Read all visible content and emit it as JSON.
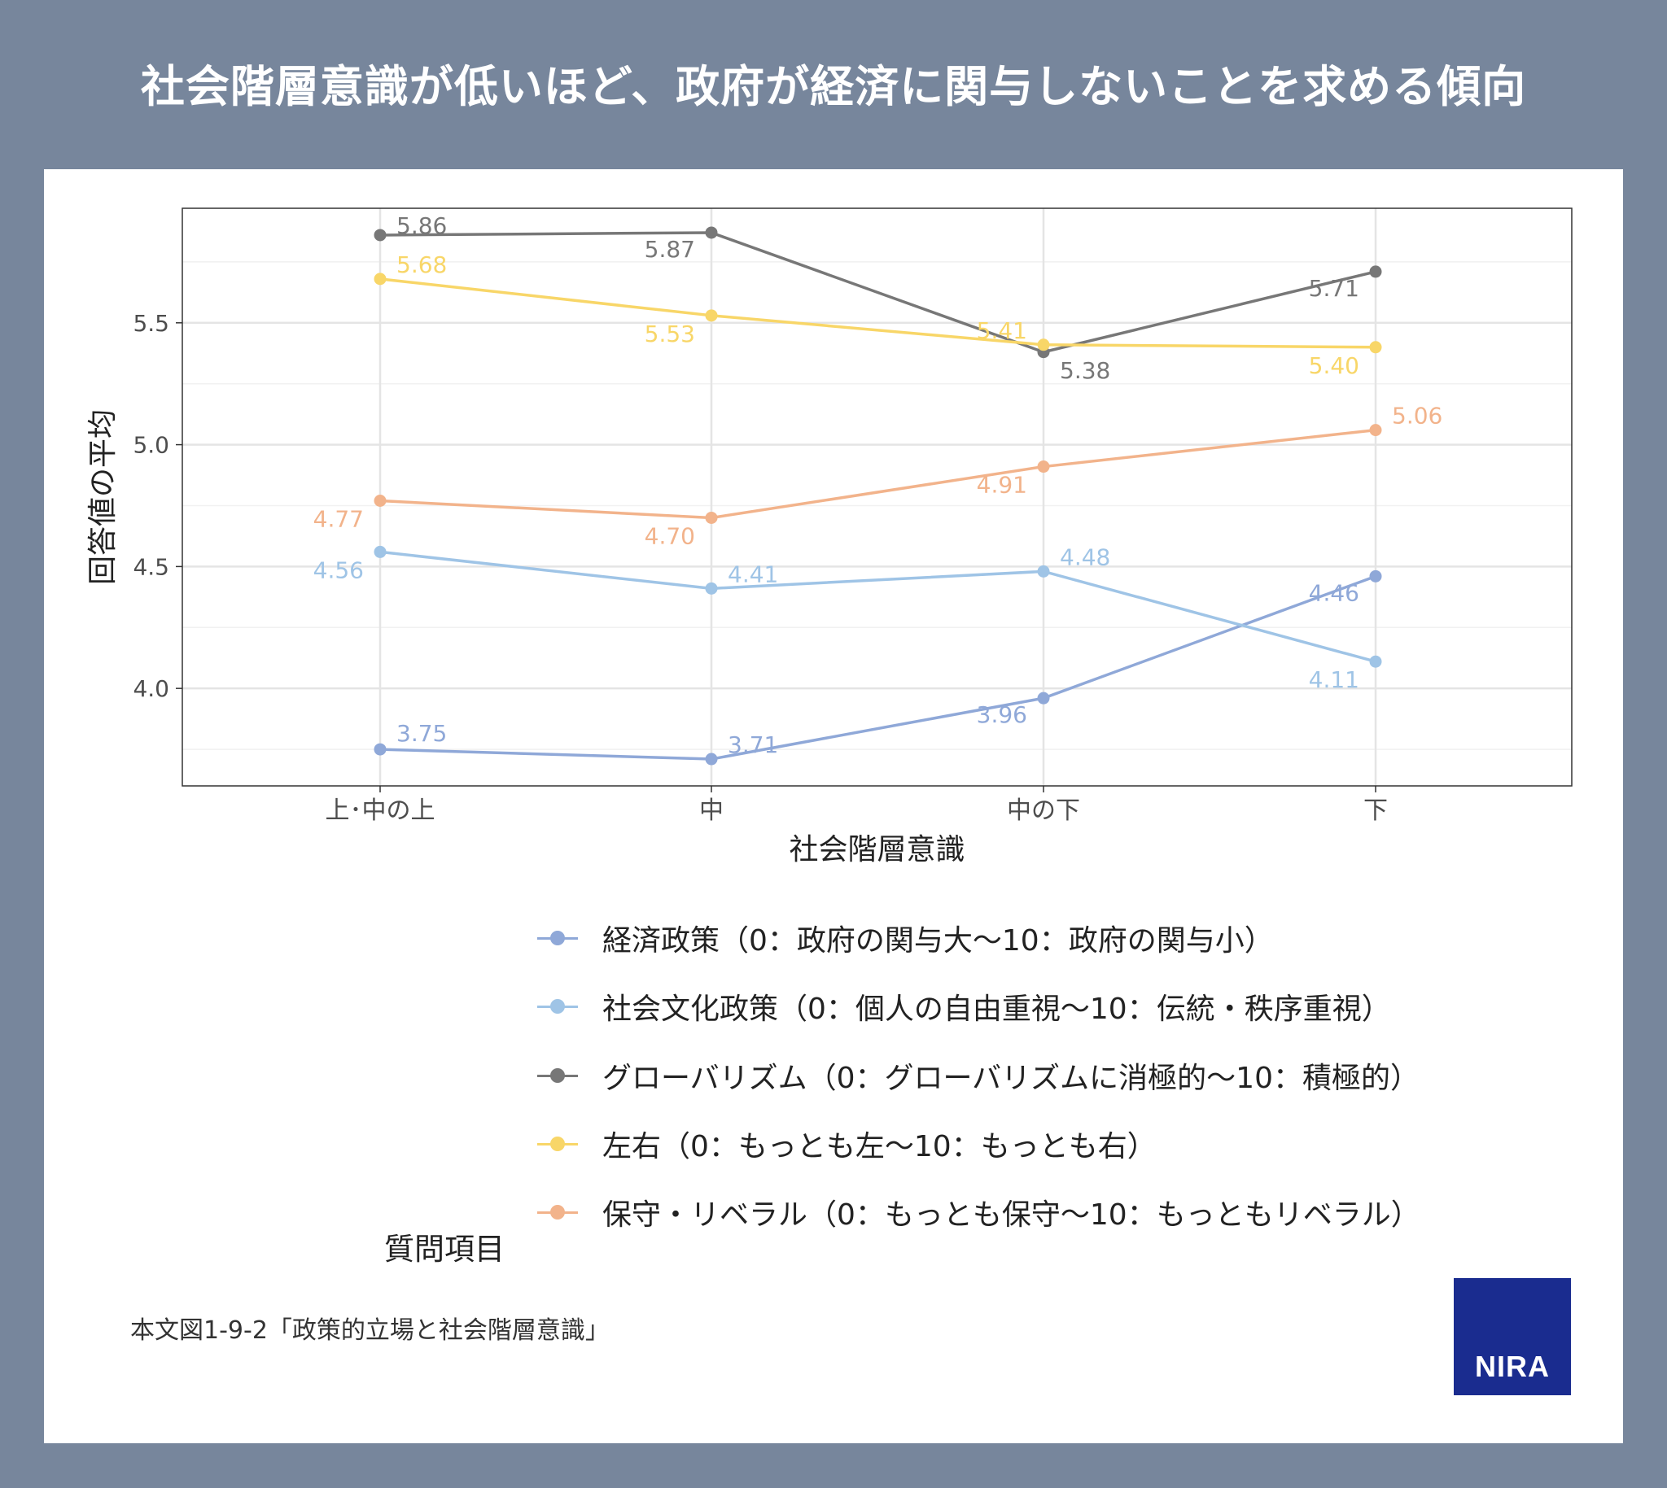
{
  "header": {
    "title": "社会階層意識が低いほど、政府が経済に関与しないことを求める傾向"
  },
  "chart_data": {
    "type": "line",
    "title": "",
    "xlabel": "社会階層意識",
    "ylabel": "回答値の平均",
    "categories": [
      "上･中の上",
      "中",
      "中の下",
      "下"
    ],
    "ylim": [
      3.6,
      5.97
    ],
    "yticks": [
      4.0,
      4.5,
      5.0,
      5.5
    ],
    "ytick_labels": [
      "4.0",
      "4.5",
      "5.0",
      "5.5"
    ],
    "grid": true,
    "legend_title": "質問項目",
    "legend_position": "bottom",
    "series": [
      {
        "name": "経済政策（0：政府の関与大〜10：政府の関与小）",
        "color": "#8fa8d8",
        "values": [
          3.75,
          3.71,
          3.96,
          4.46
        ],
        "labels": [
          "3.75",
          "3.71",
          "3.96",
          "4.46"
        ]
      },
      {
        "name": "社会文化政策（0：個人の自由重視〜10：伝統・秩序重視）",
        "color": "#9fc4e6",
        "values": [
          4.56,
          4.41,
          4.48,
          4.11
        ],
        "labels": [
          "4.56",
          "4.41",
          "4.48",
          "4.11"
        ]
      },
      {
        "name": "グローバリズム（0：グローバリズムに消極的〜10：積極的）",
        "color": "#777777",
        "values": [
          5.86,
          5.87,
          5.38,
          5.71
        ],
        "labels": [
          "5.86",
          "5.87",
          "5.38",
          "5.71"
        ]
      },
      {
        "name": "左右（0：もっとも左〜10：もっとも右）",
        "color": "#f8d668",
        "values": [
          5.68,
          5.53,
          5.41,
          5.4
        ],
        "labels": [
          "5.68",
          "5.53",
          "5.41",
          "5.40"
        ]
      },
      {
        "name": "保守・リベラル（0：もっとも保守〜10：もっともリベラル）",
        "color": "#f2b38b",
        "values": [
          4.77,
          4.7,
          4.91,
          5.06
        ],
        "labels": [
          "4.77",
          "4.70",
          "4.91",
          "5.06"
        ]
      }
    ]
  },
  "footnote": "本文図1-9-2「政策的立場と社会階層意識」",
  "logo": {
    "text": "NIRA",
    "color": "#1a2c8f"
  }
}
